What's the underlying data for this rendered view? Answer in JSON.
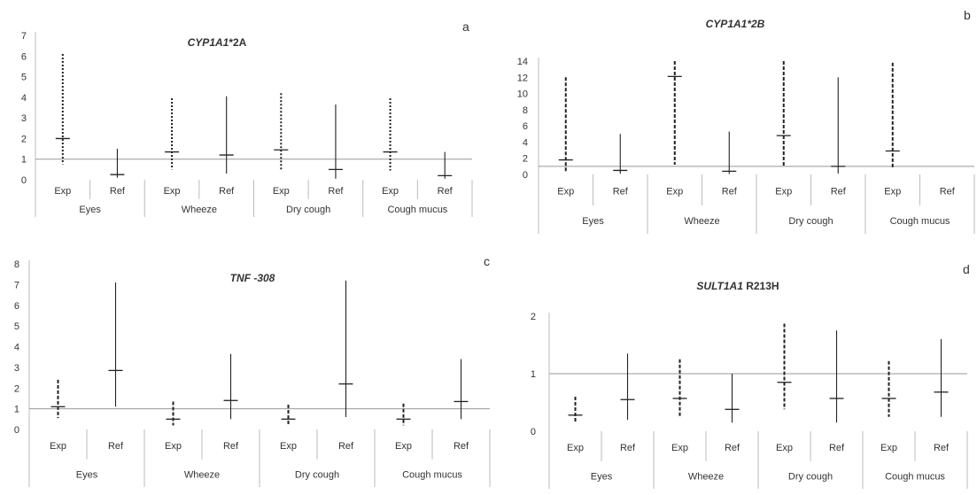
{
  "panels": [
    {
      "letter": "a",
      "title_gene": "CYP1A1",
      "title_rest": "*2A"
    },
    {
      "letter": "b",
      "title_gene": "CYP1A1*2B",
      "title_rest": ""
    },
    {
      "letter": "c",
      "title_gene": "TNF -308",
      "title_rest": ""
    },
    {
      "letter": "d",
      "title_gene": "SULT1A1",
      "title_rest": " R213H"
    }
  ],
  "chart_data": [
    {
      "type": "error-bar",
      "panel": "a",
      "title": "CYP1A1*2A",
      "categories": [
        "Exp",
        "Ref",
        "Exp",
        "Ref",
        "Exp",
        "Ref",
        "Exp",
        "Ref"
      ],
      "groups": [
        "Eyes",
        "Wheeze",
        "Dry cough",
        "Cough mucus"
      ],
      "ylim": [
        0,
        7
      ],
      "yticks": [
        0,
        1,
        2,
        3,
        4,
        5,
        6,
        7
      ],
      "reference_line": 1,
      "series": [
        {
          "name": "Exp",
          "style": "dotted",
          "points": [
            {
              "group": "Eyes",
              "estimate": 2.0,
              "low": 0.75,
              "high": 6.1
            },
            {
              "group": "Wheeze",
              "estimate": 1.35,
              "low": 0.5,
              "high": 3.95
            },
            {
              "group": "Dry cough",
              "estimate": 1.45,
              "low": 0.5,
              "high": 4.2
            },
            {
              "group": "Cough mucus",
              "estimate": 1.35,
              "low": 0.45,
              "high": 3.95
            }
          ]
        },
        {
          "name": "Ref",
          "style": "solid",
          "points": [
            {
              "group": "Eyes",
              "estimate": 0.25,
              "low": 0.1,
              "high": 1.5
            },
            {
              "group": "Wheeze",
              "estimate": 1.2,
              "low": 0.3,
              "high": 4.05
            },
            {
              "group": "Dry cough",
              "estimate": 0.5,
              "low": 0.05,
              "high": 3.65
            },
            {
              "group": "Cough mucus",
              "estimate": 0.2,
              "low": 0.05,
              "high": 1.35
            }
          ]
        }
      ]
    },
    {
      "type": "error-bar",
      "panel": "b",
      "title": "CYP1A1*2B",
      "categories": [
        "Exp",
        "Ref",
        "Exp",
        "Ref",
        "Exp",
        "Ref",
        "Exp",
        "Ref"
      ],
      "groups": [
        "Eyes",
        "Wheeze",
        "Dry cough",
        "Cough mucus"
      ],
      "ylim": [
        0,
        14
      ],
      "yticks": [
        0,
        2,
        4,
        6,
        8,
        10,
        12,
        14
      ],
      "reference_line": 1,
      "series": [
        {
          "name": "Exp",
          "style": "dashed",
          "points": [
            {
              "group": "Eyes",
              "estimate": 1.8,
              "low": 0.3,
              "high": 12.0
            },
            {
              "group": "Wheeze",
              "estimate": 12.1,
              "low": 1.2,
              "high": 14.0
            },
            {
              "group": "Dry cough",
              "estimate": 4.8,
              "low": 1.0,
              "high": 14.0
            },
            {
              "group": "Cough mucus",
              "estimate": 2.9,
              "low": 0.7,
              "high": 13.8
            }
          ]
        },
        {
          "name": "Ref",
          "style": "solid",
          "points": [
            {
              "group": "Eyes",
              "estimate": 0.5,
              "low": 0.1,
              "high": 5.0
            },
            {
              "group": "Wheeze",
              "estimate": 0.4,
              "low": 0.05,
              "high": 5.3
            },
            {
              "group": "Dry cough",
              "estimate": 1.0,
              "low": 0.1,
              "high": 12.0
            }
          ]
        }
      ]
    },
    {
      "type": "error-bar",
      "panel": "c",
      "title": "TNF -308",
      "categories": [
        "Exp",
        "Ref",
        "Exp",
        "Ref",
        "Exp",
        "Ref",
        "Exp",
        "Ref"
      ],
      "groups": [
        "Eyes",
        "Wheeze",
        "Dry cough",
        "Cough mucus"
      ],
      "ylim": [
        0,
        8
      ],
      "yticks": [
        0,
        1,
        2,
        3,
        4,
        5,
        6,
        7,
        8
      ],
      "reference_line": 1,
      "series": [
        {
          "name": "Exp",
          "style": "dashed",
          "points": [
            {
              "group": "Eyes",
              "estimate": 1.1,
              "low": 0.55,
              "high": 2.4
            },
            {
              "group": "Wheeze",
              "estimate": 0.5,
              "low": 0.2,
              "high": 1.35
            },
            {
              "group": "Dry cough",
              "estimate": 0.5,
              "low": 0.25,
              "high": 1.2
            },
            {
              "group": "Cough mucus",
              "estimate": 0.5,
              "low": 0.2,
              "high": 1.25
            }
          ]
        },
        {
          "name": "Ref",
          "style": "solid",
          "points": [
            {
              "group": "Eyes",
              "estimate": 2.85,
              "low": 1.1,
              "high": 7.1
            },
            {
              "group": "Wheeze",
              "estimate": 1.4,
              "low": 0.5,
              "high": 3.65
            },
            {
              "group": "Dry cough",
              "estimate": 2.2,
              "low": 0.6,
              "high": 7.2
            },
            {
              "group": "Cough mucus",
              "estimate": 1.35,
              "low": 0.5,
              "high": 3.4
            }
          ]
        }
      ]
    },
    {
      "type": "error-bar",
      "panel": "d",
      "title": "SULT1A1 R213H",
      "categories": [
        "Exp",
        "Ref",
        "Exp",
        "Ref",
        "Exp",
        "Ref",
        "Exp",
        "Ref"
      ],
      "groups": [
        "Eyes",
        "Wheeze",
        "Dry cough",
        "Cough mucus"
      ],
      "ylim": [
        0,
        2
      ],
      "yticks": [
        0,
        1,
        2
      ],
      "reference_line": 1,
      "series": [
        {
          "name": "Exp",
          "style": "dashed",
          "points": [
            {
              "group": "Eyes",
              "estimate": 0.28,
              "low": 0.15,
              "high": 0.6
            },
            {
              "group": "Wheeze",
              "estimate": 0.57,
              "low": 0.25,
              "high": 1.25
            },
            {
              "group": "Dry cough",
              "estimate": 0.85,
              "low": 0.38,
              "high": 1.87
            },
            {
              "group": "Cough mucus",
              "estimate": 0.57,
              "low": 0.25,
              "high": 1.22
            }
          ]
        },
        {
          "name": "Ref",
          "style": "solid",
          "points": [
            {
              "group": "Eyes",
              "estimate": 0.55,
              "low": 0.2,
              "high": 1.35
            },
            {
              "group": "Wheeze",
              "estimate": 0.38,
              "low": 0.15,
              "high": 1.0
            },
            {
              "group": "Dry cough",
              "estimate": 0.57,
              "low": 0.15,
              "high": 1.75
            },
            {
              "group": "Cough mucus",
              "estimate": 0.68,
              "low": 0.25,
              "high": 1.6
            }
          ]
        }
      ]
    }
  ]
}
